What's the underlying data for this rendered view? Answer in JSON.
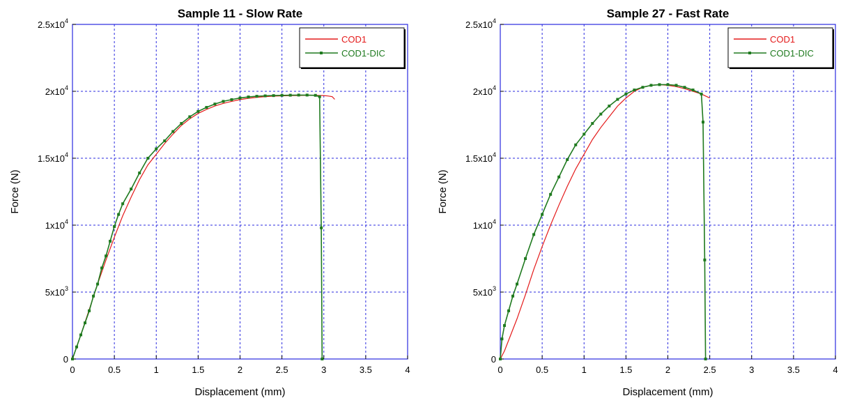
{
  "chart_data": [
    {
      "type": "line",
      "title": "Sample 11 - Slow Rate",
      "xlabel": "Displacement (mm)",
      "ylabel": "Force (N)",
      "xlim": [
        0,
        4
      ],
      "ylim": [
        0,
        25000
      ],
      "x_ticks": [
        "0",
        "0.5",
        "1",
        "1.5",
        "2",
        "2.5",
        "3",
        "3.5",
        "4"
      ],
      "y_ticks": [
        {
          "base": "0",
          "exp": ""
        },
        {
          "base": "5x10",
          "exp": "3"
        },
        {
          "base": "1x10",
          "exp": "4"
        },
        {
          "base": "1.5x10",
          "exp": "4"
        },
        {
          "base": "2x10",
          "exp": "4"
        },
        {
          "base": "2.5x10",
          "exp": "4"
        }
      ],
      "grid": true,
      "legend_position": "top-right",
      "series": [
        {
          "name": "COD1",
          "color": "#e41a1a",
          "marker": "none",
          "x": [
            0,
            0.1,
            0.2,
            0.3,
            0.4,
            0.5,
            0.6,
            0.7,
            0.8,
            0.9,
            1.0,
            1.1,
            1.2,
            1.3,
            1.4,
            1.5,
            1.6,
            1.7,
            1.8,
            1.9,
            2.0,
            2.1,
            2.2,
            2.3,
            2.4,
            2.5,
            2.6,
            2.7,
            2.8,
            2.9,
            3.0,
            3.05,
            3.1,
            3.13
          ],
          "y": [
            0,
            1800,
            3700,
            5600,
            7400,
            9100,
            10700,
            12100,
            13400,
            14500,
            15300,
            16100,
            16800,
            17450,
            17950,
            18350,
            18650,
            18900,
            19100,
            19250,
            19380,
            19480,
            19550,
            19600,
            19640,
            19660,
            19680,
            19690,
            19700,
            19700,
            19680,
            19650,
            19600,
            19400
          ]
        },
        {
          "name": "COD1-DIC",
          "color": "#1f7a1f",
          "marker": "square",
          "x": [
            0,
            0.05,
            0.1,
            0.15,
            0.2,
            0.25,
            0.3,
            0.35,
            0.4,
            0.45,
            0.5,
            0.55,
            0.6,
            0.7,
            0.8,
            0.9,
            1.0,
            1.1,
            1.2,
            1.3,
            1.4,
            1.5,
            1.6,
            1.7,
            1.8,
            1.9,
            2.0,
            2.1,
            2.2,
            2.3,
            2.4,
            2.5,
            2.6,
            2.7,
            2.8,
            2.9,
            2.95,
            2.97,
            2.98
          ],
          "y": [
            0,
            900,
            1800,
            2700,
            3600,
            4700,
            5600,
            6800,
            7700,
            8800,
            9900,
            10800,
            11600,
            12700,
            13900,
            15000,
            15700,
            16300,
            17000,
            17600,
            18100,
            18500,
            18800,
            19050,
            19250,
            19380,
            19500,
            19580,
            19630,
            19660,
            19680,
            19700,
            19710,
            19720,
            19720,
            19700,
            19600,
            9800,
            0
          ]
        }
      ]
    },
    {
      "type": "line",
      "title": "Sample 27 - Fast Rate",
      "xlabel": "Displacement (mm)",
      "ylabel": "Force (N)",
      "xlim": [
        0,
        4
      ],
      "ylim": [
        0,
        25000
      ],
      "x_ticks": [
        "0",
        "0.5",
        "1",
        "1.5",
        "2",
        "2.5",
        "3",
        "3.5",
        "4"
      ],
      "y_ticks": [
        {
          "base": "0",
          "exp": ""
        },
        {
          "base": "5x10",
          "exp": "3"
        },
        {
          "base": "1x10",
          "exp": "4"
        },
        {
          "base": "1.5x10",
          "exp": "4"
        },
        {
          "base": "2x10",
          "exp": "4"
        },
        {
          "base": "2.5x10",
          "exp": "4"
        }
      ],
      "grid": true,
      "legend_position": "top-right",
      "series": [
        {
          "name": "COD1",
          "color": "#e41a1a",
          "marker": "none",
          "x": [
            0,
            0.05,
            0.1,
            0.2,
            0.3,
            0.4,
            0.5,
            0.6,
            0.7,
            0.8,
            0.9,
            1.0,
            1.1,
            1.2,
            1.3,
            1.4,
            1.5,
            1.6,
            1.7,
            1.8,
            1.9,
            2.0,
            2.1,
            2.2,
            2.3,
            2.4,
            2.5
          ],
          "y": [
            0,
            600,
            1400,
            3000,
            4800,
            6700,
            8400,
            10000,
            11500,
            12900,
            14200,
            15300,
            16400,
            17300,
            18100,
            18900,
            19500,
            20000,
            20300,
            20450,
            20500,
            20450,
            20350,
            20200,
            20000,
            19800,
            19500
          ]
        },
        {
          "name": "COD1-DIC",
          "color": "#1f7a1f",
          "marker": "square",
          "x": [
            0,
            0.02,
            0.05,
            0.1,
            0.15,
            0.2,
            0.3,
            0.4,
            0.5,
            0.6,
            0.7,
            0.8,
            0.9,
            1.0,
            1.1,
            1.2,
            1.3,
            1.4,
            1.5,
            1.6,
            1.7,
            1.8,
            1.9,
            2.0,
            2.1,
            2.2,
            2.3,
            2.4,
            2.42,
            2.44,
            2.45
          ],
          "y": [
            0,
            1500,
            2500,
            3600,
            4700,
            5600,
            7500,
            9300,
            10800,
            12300,
            13600,
            14900,
            16000,
            16800,
            17600,
            18300,
            18900,
            19400,
            19800,
            20100,
            20300,
            20450,
            20500,
            20500,
            20450,
            20300,
            20100,
            19800,
            17700,
            7400,
            0
          ]
        }
      ]
    }
  ]
}
